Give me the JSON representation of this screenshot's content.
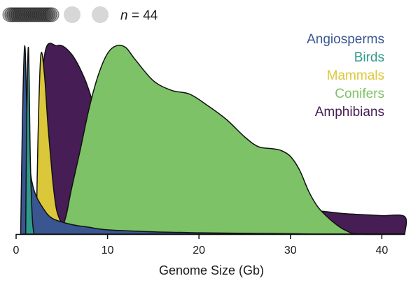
{
  "chart_data": {
    "type": "area",
    "title": "",
    "xlabel": "Genome Size (Gb)",
    "ylabel": "",
    "xlim": [
      0,
      42.5
    ],
    "ylim": [
      0,
      1
    ],
    "x_ticks": [
      0,
      10,
      20,
      30,
      40
    ],
    "grid": false,
    "legend_position": "top-right",
    "annotation": {
      "prefix": "n",
      "text": " = 44",
      "markers": 3
    },
    "series": [
      {
        "name": "Amphibians",
        "color": "#461d54",
        "points": [
          [
            2.5,
            0
          ],
          [
            3,
            0.88
          ],
          [
            4.5,
            0.97
          ],
          [
            6,
            0.93
          ],
          [
            7.5,
            0.8
          ],
          [
            9,
            0.6
          ],
          [
            10.5,
            0.48
          ],
          [
            12,
            0.4
          ],
          [
            14,
            0.34
          ],
          [
            16,
            0.3
          ],
          [
            18,
            0.27
          ],
          [
            20,
            0.24
          ],
          [
            22,
            0.21
          ],
          [
            24,
            0.19
          ],
          [
            26,
            0.17
          ],
          [
            28,
            0.155
          ],
          [
            30,
            0.14
          ],
          [
            32,
            0.125
          ],
          [
            34,
            0.115
          ],
          [
            36,
            0.105
          ],
          [
            38,
            0.1
          ],
          [
            40,
            0.095
          ],
          [
            42.5,
            0.09
          ],
          [
            42.5,
            0
          ]
        ]
      },
      {
        "name": "Conifers",
        "color": "#7dc266",
        "points": [
          [
            4.5,
            0
          ],
          [
            5,
            0.03
          ],
          [
            5.5,
            0.1
          ],
          [
            6,
            0.22
          ],
          [
            7,
            0.43
          ],
          [
            8,
            0.65
          ],
          [
            9,
            0.82
          ],
          [
            10,
            0.93
          ],
          [
            11,
            0.97
          ],
          [
            12,
            0.96
          ],
          [
            13,
            0.9
          ],
          [
            15,
            0.79
          ],
          [
            17,
            0.74
          ],
          [
            19,
            0.72
          ],
          [
            21,
            0.66
          ],
          [
            23,
            0.59
          ],
          [
            25,
            0.5
          ],
          [
            26.5,
            0.45
          ],
          [
            28,
            0.44
          ],
          [
            29,
            0.43
          ],
          [
            30,
            0.4
          ],
          [
            31,
            0.33
          ],
          [
            32,
            0.22
          ],
          [
            33,
            0.14
          ],
          [
            34,
            0.09
          ],
          [
            35,
            0.05
          ],
          [
            36,
            0.02
          ],
          [
            37.5,
            0
          ],
          [
            42.5,
            0
          ]
        ]
      },
      {
        "name": "Mammals",
        "color": "#dbc73a",
        "points": [
          [
            2.2,
            0
          ],
          [
            2.4,
            0.5
          ],
          [
            2.7,
            0.92
          ],
          [
            3.1,
            0.82
          ],
          [
            3.5,
            0.55
          ],
          [
            4,
            0.28
          ],
          [
            4.4,
            0.13
          ],
          [
            4.9,
            0.06
          ],
          [
            5.3,
            0
          ]
        ]
      },
      {
        "name": "Angiosperms",
        "color": "#3a5691",
        "points": [
          [
            0.5,
            0
          ],
          [
            0.7,
            0.6
          ],
          [
            0.95,
            0.97
          ],
          [
            1.2,
            0.6
          ],
          [
            1.5,
            0.35
          ],
          [
            2,
            0.22
          ],
          [
            3,
            0.13
          ],
          [
            4,
            0.08
          ],
          [
            6,
            0.05
          ],
          [
            8,
            0.035
          ],
          [
            10,
            0.022
          ],
          [
            15,
            0.012
          ],
          [
            20,
            0.007
          ],
          [
            25,
            0.004
          ],
          [
            30,
            0.002
          ],
          [
            33,
            0
          ],
          [
            42.5,
            0
          ]
        ]
      },
      {
        "name": "Birds",
        "color": "#2f9a8b",
        "points": [
          [
            1.05,
            0
          ],
          [
            1.15,
            0.55
          ],
          [
            1.35,
            0.96
          ],
          [
            1.55,
            0.4
          ],
          [
            1.75,
            0.1
          ],
          [
            1.95,
            0
          ]
        ]
      }
    ],
    "legend_order": [
      "Angiosperms",
      "Birds",
      "Mammals",
      "Conifers",
      "Amphibians"
    ]
  }
}
